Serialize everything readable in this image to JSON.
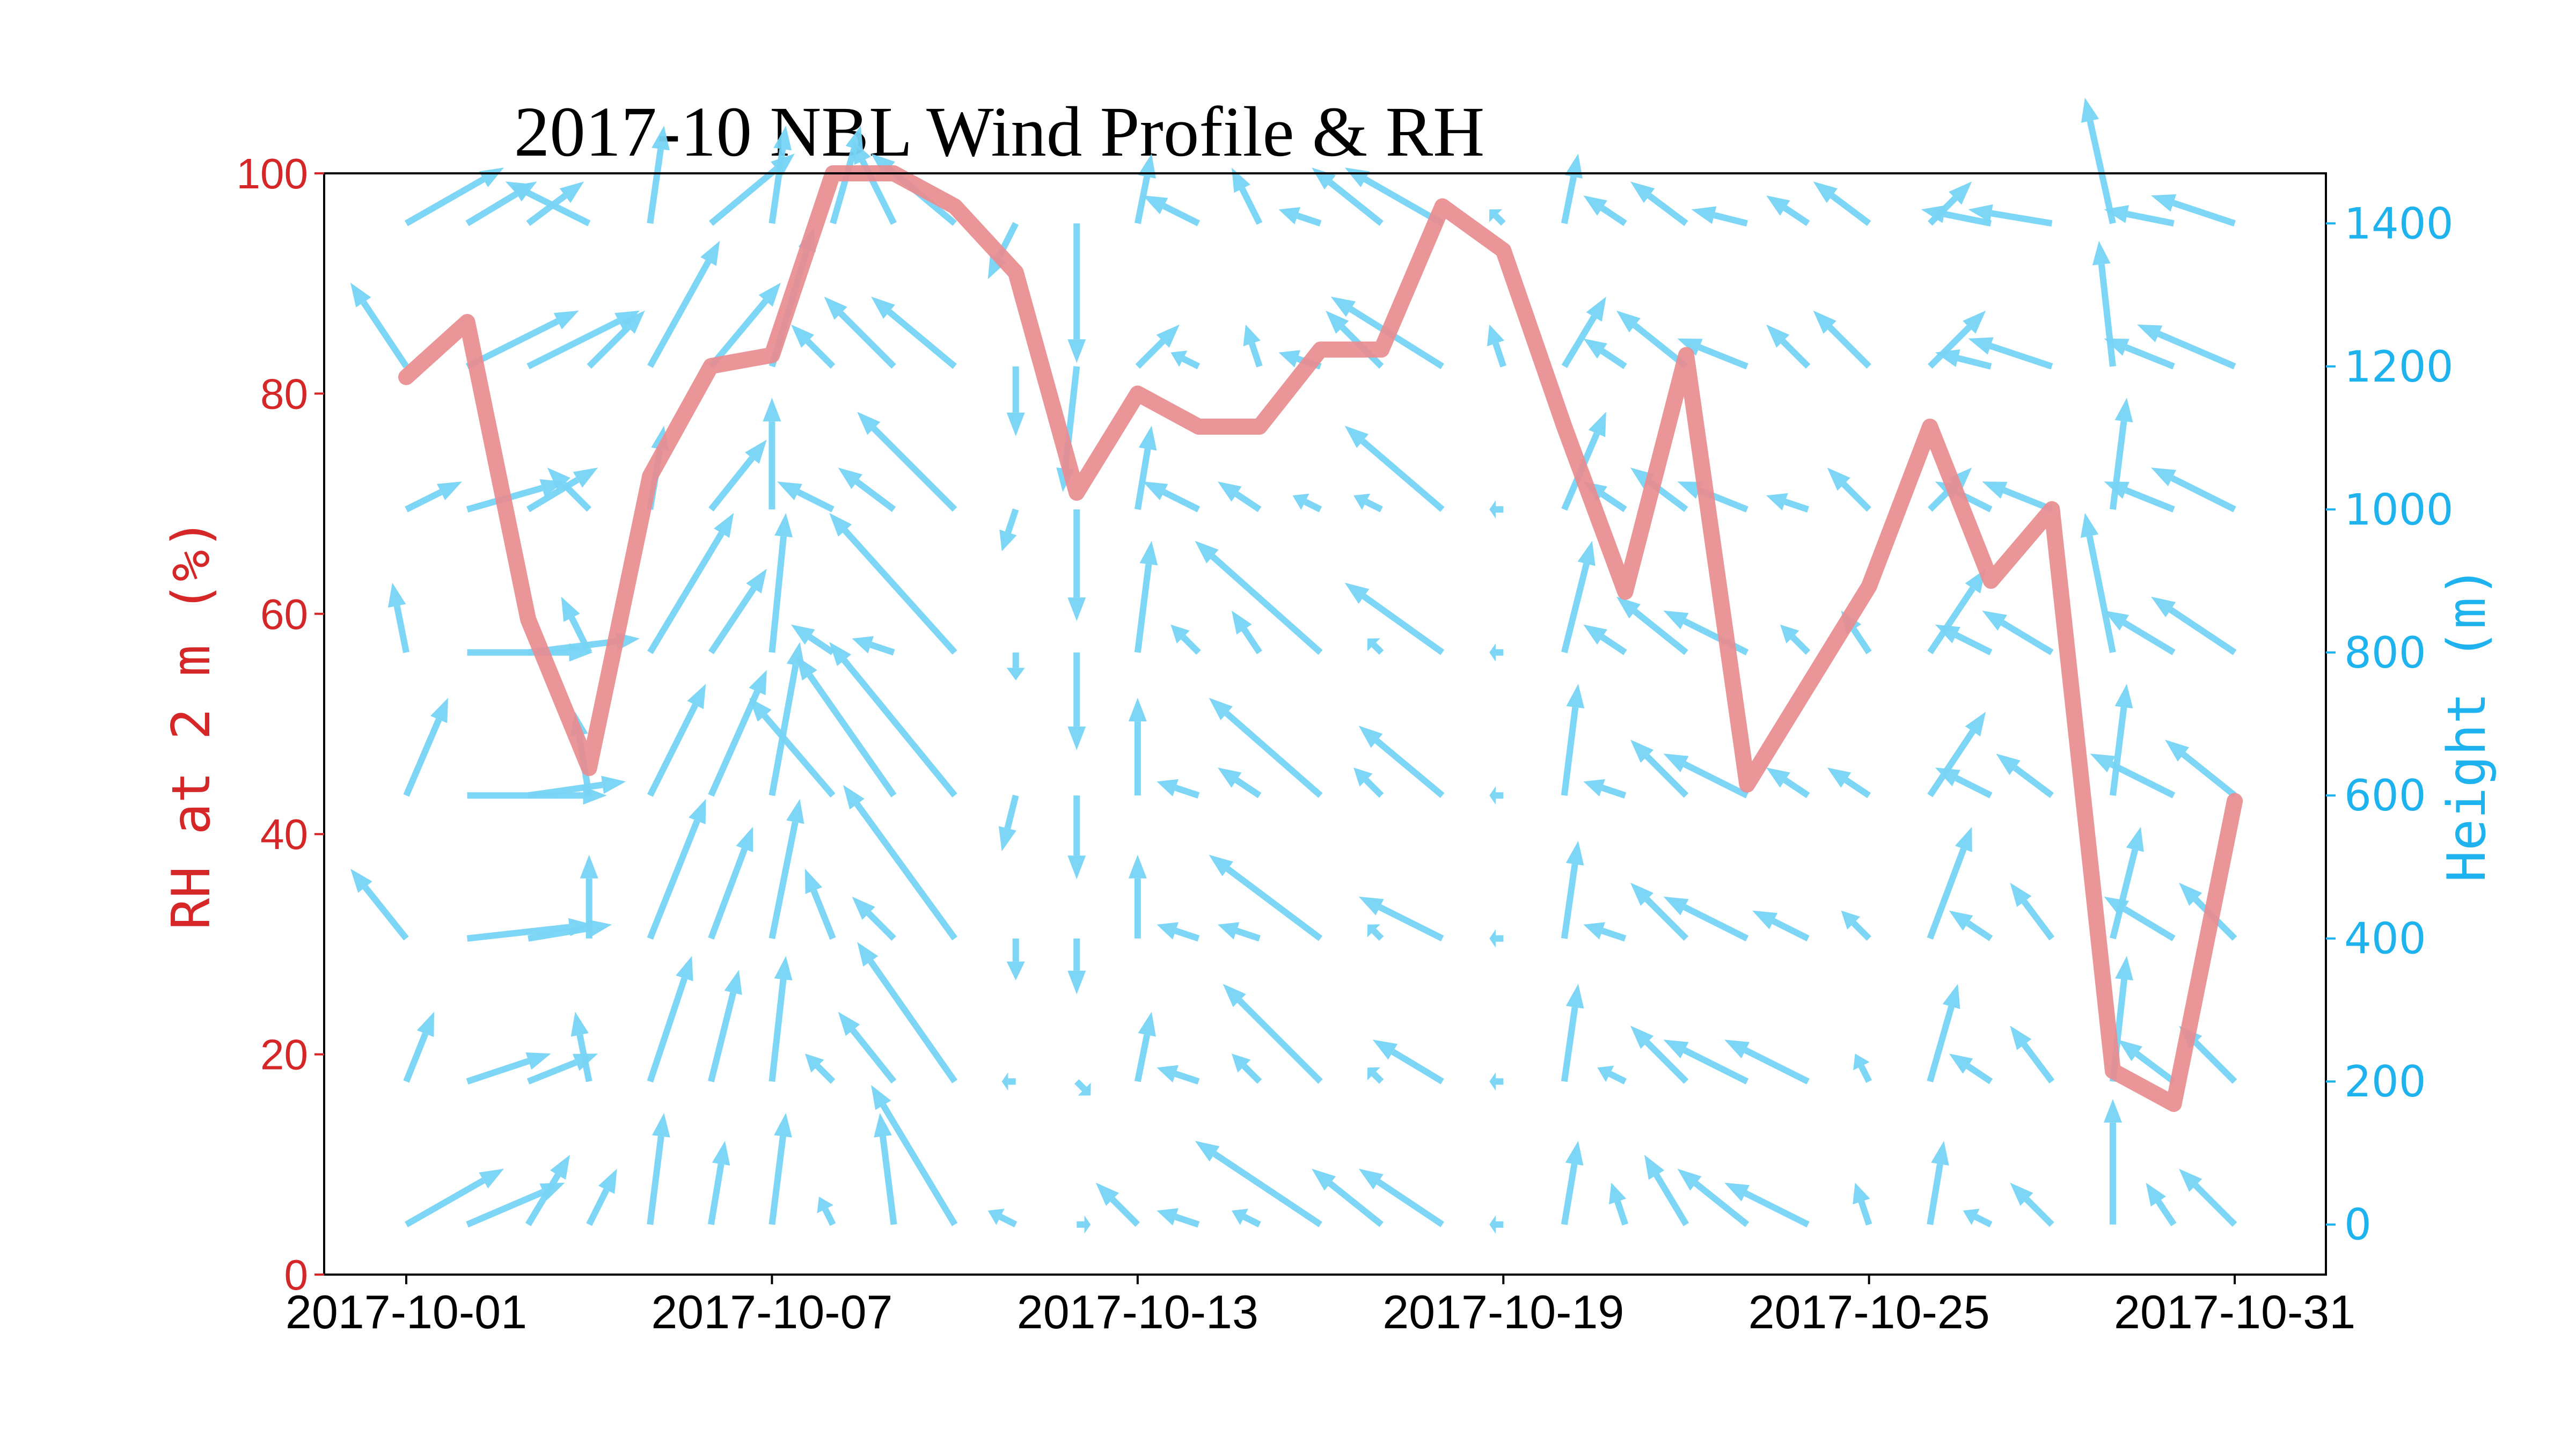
{
  "chart_data": {
    "type": "line",
    "title": "2017-10 NBL Wind Profile & RH",
    "x": [
      "2017-10-01",
      "2017-10-02",
      "2017-10-03",
      "2017-10-04",
      "2017-10-05",
      "2017-10-06",
      "2017-10-07",
      "2017-10-08",
      "2017-10-09",
      "2017-10-10",
      "2017-10-11",
      "2017-10-12",
      "2017-10-13",
      "2017-10-14",
      "2017-10-15",
      "2017-10-16",
      "2017-10-17",
      "2017-10-18",
      "2017-10-19",
      "2017-10-20",
      "2017-10-21",
      "2017-10-22",
      "2017-10-23",
      "2017-10-24",
      "2017-10-25",
      "2017-10-26",
      "2017-10-27",
      "2017-10-28",
      "2017-10-29",
      "2017-10-30",
      "2017-10-31"
    ],
    "x_ticks": [
      "2017-10-01",
      "2017-10-07",
      "2017-10-13",
      "2017-10-19",
      "2017-10-25",
      "2017-10-31"
    ],
    "series": [
      {
        "values": [
          81.5,
          86.5,
          59.5,
          46,
          72.5,
          82.5,
          83.5,
          100,
          100,
          97,
          91,
          71,
          80,
          77,
          77,
          84,
          84,
          97,
          93,
          77,
          62,
          83.5,
          44.5,
          53.5,
          62.5,
          77,
          63,
          69.5,
          18.5,
          15.5,
          43
        ]
      }
    ],
    "ylabel": "RH at 2 m (%)",
    "ylim": [
      0,
      100
    ],
    "yticks": [
      "0",
      "20",
      "40",
      "60",
      "80",
      "100"
    ],
    "y2label": "Height (m)",
    "y2lim": [
      -70,
      1470
    ],
    "y2ticks": [
      "0",
      "200",
      "400",
      "600",
      "800",
      "1000",
      "1200",
      "1400"
    ],
    "wind_heights": [
      0,
      200,
      400,
      600,
      800,
      1000,
      1200,
      1400
    ],
    "wind_vectors": [
      [
        [
          7,
          -4
        ],
        [
          2,
          -5
        ],
        [
          -4,
          -5
        ],
        [
          3,
          -7
        ],
        [
          -1,
          -5
        ],
        [
          4,
          -2
        ],
        [
          -4,
          -6
        ],
        [
          7,
          -4
        ]
      ],
      [
        [
          7,
          -3
        ],
        [
          6,
          -2
        ],
        [
          9,
          -1
        ],
        [
          10,
          0
        ],
        [
          9,
          0
        ],
        [
          7,
          -2
        ],
        [
          8,
          -4
        ],
        [
          5,
          -3
        ]
      ],
      [
        [
          3,
          -5
        ],
        [
          5,
          -2
        ],
        [
          6,
          -1
        ],
        [
          7,
          -1
        ],
        [
          8,
          -1
        ],
        [
          5,
          -3
        ],
        [
          8,
          -4
        ],
        [
          4,
          -3
        ]
      ],
      [
        [
          2,
          -4
        ],
        [
          -1,
          -5
        ],
        [
          0,
          -6
        ],
        [
          -1,
          -6
        ],
        [
          -2,
          -4
        ],
        [
          -3,
          -3
        ],
        [
          4,
          -4
        ],
        [
          -6,
          -3
        ]
      ],
      [
        [
          1,
          -8
        ],
        [
          3,
          -9
        ],
        [
          4,
          -10
        ],
        [
          4,
          -8
        ],
        [
          6,
          -10
        ],
        [
          1,
          -6
        ],
        [
          5,
          -9
        ],
        [
          1,
          -7
        ]
      ],
      [
        [
          1,
          -6
        ],
        [
          2,
          -8
        ],
        [
          3,
          -8
        ],
        [
          4,
          -9
        ],
        [
          4,
          -6
        ],
        [
          4,
          -5
        ],
        [
          5,
          -6
        ],
        [
          6,
          -5
        ]
      ],
      [
        [
          1,
          -8
        ],
        [
          1,
          -9
        ],
        [
          2,
          -10
        ],
        [
          2,
          -11
        ],
        [
          1,
          -10
        ],
        [
          0,
          -8
        ],
        [
          3,
          -10
        ],
        [
          1,
          -7
        ]
      ],
      [
        [
          -1,
          -2
        ],
        [
          -2,
          -2
        ],
        [
          -2,
          -5
        ],
        [
          -6,
          -7
        ],
        [
          -3,
          -2
        ],
        [
          -4,
          -2
        ],
        [
          -3,
          -3
        ],
        [
          2,
          -7
        ]
      ],
      [
        [
          -1,
          -8
        ],
        [
          -4,
          -5
        ],
        [
          -3,
          -3
        ],
        [
          -7,
          -10
        ],
        [
          -3,
          -1
        ],
        [
          -4,
          -3
        ],
        [
          -5,
          -5
        ],
        [
          -3,
          -6
        ]
      ],
      [
        [
          -6,
          -10
        ],
        [
          -7,
          -10
        ],
        [
          -8,
          -11
        ],
        [
          -9,
          -11
        ],
        [
          -9,
          -10
        ],
        [
          -7,
          -7
        ],
        [
          -6,
          -5
        ],
        [
          -6,
          -5
        ]
      ],
      [
        [
          -2,
          -1
        ],
        [
          -1,
          0
        ],
        [
          0,
          3
        ],
        [
          -1,
          4
        ],
        [
          0,
          2
        ],
        [
          -1,
          3
        ],
        [
          0,
          5
        ],
        [
          -2,
          4
        ]
      ],
      [
        [
          1,
          0
        ],
        [
          1,
          1
        ],
        [
          0,
          4
        ],
        [
          0,
          6
        ],
        [
          0,
          7
        ],
        [
          0,
          8
        ],
        [
          -1,
          9
        ],
        [
          0,
          10
        ]
      ],
      [
        [
          -3,
          -3
        ],
        [
          1,
          -5
        ],
        [
          0,
          -6
        ],
        [
          0,
          -7
        ],
        [
          1,
          -8
        ],
        [
          1,
          -6
        ],
        [
          3,
          -3
        ],
        [
          1,
          -5
        ]
      ],
      [
        [
          -3,
          -1
        ],
        [
          -3,
          -1
        ],
        [
          -3,
          -1
        ],
        [
          -3,
          -1
        ],
        [
          -2,
          -2
        ],
        [
          -4,
          -2
        ],
        [
          -2,
          -1
        ],
        [
          -4,
          -2
        ]
      ],
      [
        [
          -2,
          -1
        ],
        [
          -2,
          -2
        ],
        [
          -3,
          -1
        ],
        [
          -3,
          -2
        ],
        [
          -2,
          -3
        ],
        [
          -3,
          -2
        ],
        [
          -1,
          -3
        ],
        [
          -2,
          -4
        ]
      ],
      [
        [
          -9,
          -6
        ],
        [
          -7,
          -7
        ],
        [
          -8,
          -6
        ],
        [
          -8,
          -7
        ],
        [
          -9,
          -8
        ],
        [
          -2,
          -1
        ],
        [
          -3,
          -1
        ],
        [
          -3,
          -1
        ]
      ],
      [
        [
          -5,
          -4
        ],
        [
          -1,
          -1
        ],
        [
          -1,
          -1
        ],
        [
          -2,
          -2
        ],
        [
          -1,
          -1
        ],
        [
          -2,
          -1
        ],
        [
          -4,
          -4
        ],
        [
          -5,
          -4
        ]
      ],
      [
        [
          -6,
          -4
        ],
        [
          -5,
          -3
        ],
        [
          -6,
          -3
        ],
        [
          -6,
          -5
        ],
        [
          -7,
          -5
        ],
        [
          -7,
          -6
        ],
        [
          -8,
          -5
        ],
        [
          -7,
          -4
        ]
      ],
      [
        [
          -1,
          0
        ],
        [
          -1,
          0
        ],
        [
          -1,
          0
        ],
        [
          -1,
          0
        ],
        [
          -1,
          0
        ],
        [
          -1,
          0
        ],
        [
          -1,
          -3
        ],
        [
          -1,
          -1
        ]
      ],
      [
        [
          1,
          -6
        ],
        [
          1,
          -7
        ],
        [
          1,
          -7
        ],
        [
          1,
          -8
        ],
        [
          2,
          -8
        ],
        [
          3,
          -7
        ],
        [
          3,
          -5
        ],
        [
          1,
          -5
        ]
      ],
      [
        [
          -1,
          -3
        ],
        [
          -2,
          -1
        ],
        [
          -3,
          -1
        ],
        [
          -3,
          -1
        ],
        [
          -3,
          -2
        ],
        [
          -3,
          -2
        ],
        [
          -3,
          -2
        ],
        [
          -3,
          -2
        ]
      ],
      [
        [
          -3,
          -5
        ],
        [
          -4,
          -4
        ],
        [
          -4,
          -4
        ],
        [
          -4,
          -4
        ],
        [
          -5,
          -4
        ],
        [
          -4,
          -3
        ],
        [
          -5,
          -4
        ],
        [
          -4,
          -3
        ]
      ],
      [
        [
          -5,
          -4
        ],
        [
          -6,
          -3
        ],
        [
          -6,
          -3
        ],
        [
          -6,
          -3
        ],
        [
          -6,
          -3
        ],
        [
          -5,
          -2
        ],
        [
          -5,
          -2
        ],
        [
          -4,
          -1
        ]
      ],
      [
        [
          -6,
          -3
        ],
        [
          -6,
          -3
        ],
        [
          -4,
          -2
        ],
        [
          -3,
          -2
        ],
        [
          -2,
          -2
        ],
        [
          -3,
          -1
        ],
        [
          -3,
          -3
        ],
        [
          -3,
          -2
        ]
      ],
      [
        [
          -1,
          -3
        ],
        [
          -1,
          -2
        ],
        [
          -2,
          -2
        ],
        [
          -3,
          -2
        ],
        [
          -2,
          -3
        ],
        [
          -3,
          -3
        ],
        [
          -4,
          -4
        ],
        [
          -4,
          -3
        ]
      ],
      [
        [
          1,
          -6
        ],
        [
          2,
          -7
        ],
        [
          3,
          -8
        ],
        [
          4,
          -6
        ],
        [
          4,
          -6
        ],
        [
          3,
          -3
        ],
        [
          4,
          -4
        ],
        [
          3,
          -3
        ]
      ],
      [
        [
          -2,
          -1
        ],
        [
          -3,
          -2
        ],
        [
          -3,
          -2
        ],
        [
          -4,
          -2
        ],
        [
          -4,
          -2
        ],
        [
          -4,
          -2
        ],
        [
          -4,
          -1
        ],
        [
          -5,
          -1
        ]
      ],
      [
        [
          -3,
          -3
        ],
        [
          -3,
          -4
        ],
        [
          -3,
          -4
        ],
        [
          -4,
          -3
        ],
        [
          -5,
          -3
        ],
        [
          -5,
          -2
        ],
        [
          -6,
          -2
        ],
        [
          -6,
          -1
        ]
      ],
      [
        [
          0,
          -9
        ],
        [
          1,
          -9
        ],
        [
          2,
          -8
        ],
        [
          1,
          -8
        ],
        [
          -2,
          -10
        ],
        [
          1,
          -8
        ],
        [
          -1,
          -9
        ],
        [
          -2,
          -9
        ]
      ],
      [
        [
          -2,
          -3
        ],
        [
          -4,
          -3
        ],
        [
          -5,
          -3
        ],
        [
          -6,
          -3
        ],
        [
          -5,
          -3
        ],
        [
          -5,
          -2
        ],
        [
          -5,
          -2
        ],
        [
          -5,
          -1
        ]
      ],
      [
        [
          -4,
          -4
        ],
        [
          -4,
          -4
        ],
        [
          -4,
          -4
        ],
        [
          -5,
          -4
        ],
        [
          -6,
          -4
        ],
        [
          -6,
          -3
        ],
        [
          -7,
          -3
        ],
        [
          -6,
          -2
        ]
      ]
    ],
    "colors": {
      "rh_line": "#e88c8f",
      "wind": "#77d4f5",
      "left_axis": "#d62728",
      "right_axis": "#1eb3ee"
    },
    "grid": false
  }
}
